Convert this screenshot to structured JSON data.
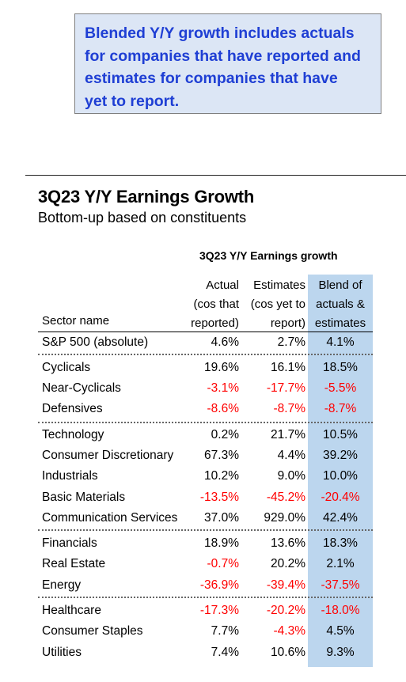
{
  "callout": {
    "lines": [
      "Blended Y/Y growth includes actuals",
      "for companies that have reported and",
      "estimates for companies that have",
      "yet to report."
    ]
  },
  "title": "3Q23 Y/Y Earnings Growth",
  "subtitle": "Bottom-up based on constituents",
  "table": {
    "title": "3Q23 Y/Y Earnings growth",
    "headers": {
      "sector": "Sector name",
      "actual": [
        "Actual",
        "(cos that",
        "reported)"
      ],
      "estimates": [
        "Estimates",
        "(cos yet to",
        "report)"
      ],
      "blend": [
        "Blend of",
        "actuals &",
        "estimates"
      ]
    },
    "rows": [
      {
        "name": "S&P 500 (absolute)",
        "actual": "4.6%",
        "estimates": "2.7%",
        "blend": "4.1%"
      },
      {
        "name": "Cyclicals",
        "actual": "19.6%",
        "estimates": "16.1%",
        "blend": "18.5%"
      },
      {
        "name": "Near-Cyclicals",
        "actual": "-3.1%",
        "estimates": "-17.7%",
        "blend": "-5.5%"
      },
      {
        "name": "Defensives",
        "actual": "-8.6%",
        "estimates": "-8.7%",
        "blend": "-8.7%"
      },
      {
        "name": "Technology",
        "actual": "0.2%",
        "estimates": "21.7%",
        "blend": "10.5%"
      },
      {
        "name": "Consumer Discretionary",
        "actual": "67.3%",
        "estimates": "4.4%",
        "blend": "39.2%"
      },
      {
        "name": "Industrials",
        "actual": "10.2%",
        "estimates": "9.0%",
        "blend": "10.0%"
      },
      {
        "name": "Basic Materials",
        "actual": "-13.5%",
        "estimates": "-45.2%",
        "blend": "-20.4%"
      },
      {
        "name": "Communication Services",
        "actual": "37.0%",
        "estimates": "929.0%",
        "blend": "42.4%"
      },
      {
        "name": "Financials",
        "actual": "18.9%",
        "estimates": "13.6%",
        "blend": "18.3%"
      },
      {
        "name": "Real Estate",
        "actual": "-0.7%",
        "estimates": "20.2%",
        "blend": "2.1%"
      },
      {
        "name": "Energy",
        "actual": "-36.9%",
        "estimates": "-39.4%",
        "blend": "-37.5%"
      },
      {
        "name": "Healthcare",
        "actual": "-17.3%",
        "estimates": "-20.2%",
        "blend": "-18.0%"
      },
      {
        "name": "Consumer Staples",
        "actual": "7.7%",
        "estimates": "-4.3%",
        "blend": "4.5%"
      },
      {
        "name": "Utilities",
        "actual": "7.4%",
        "estimates": "10.6%",
        "blend": "9.3%"
      }
    ]
  },
  "colors": {
    "callout_text": "#1f3fd4",
    "callout_bg": "#dce6f5",
    "blend_highlight": "#bcd6ee",
    "negative": "#ff0000"
  }
}
